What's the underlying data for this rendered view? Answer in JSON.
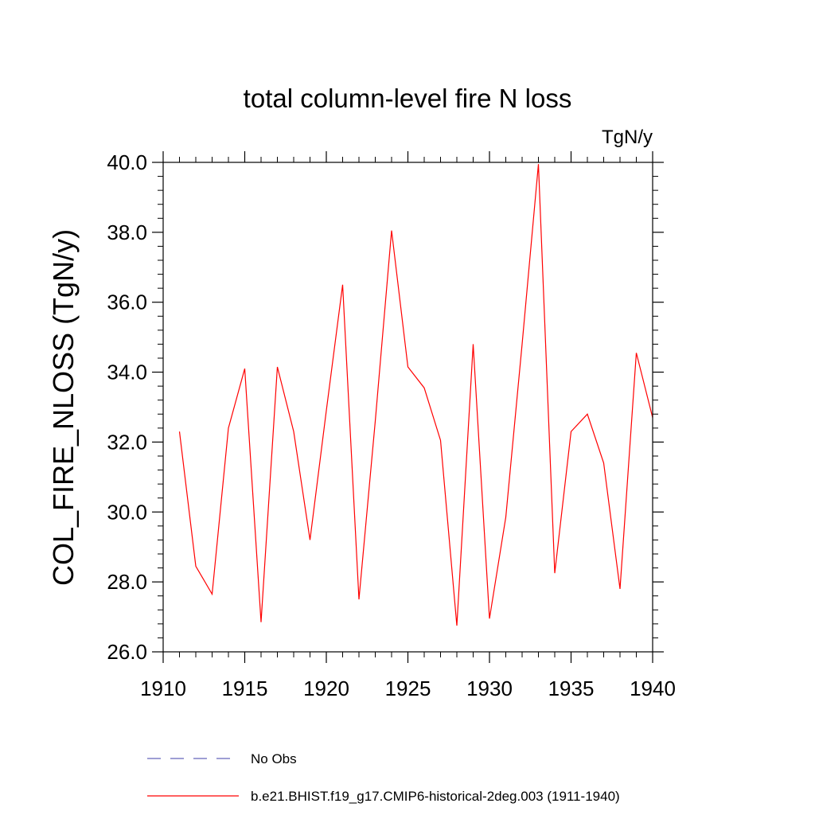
{
  "chart_data": {
    "type": "line",
    "title": "total column-level fire N loss",
    "units_label": "TgN/y",
    "xlabel": "",
    "ylabel": "COL_FIRE_NLOSS  (TgN/y)",
    "xlim": [
      1910,
      1940
    ],
    "ylim": [
      26.0,
      40.0
    ],
    "x_ticks": [
      1910,
      1915,
      1920,
      1925,
      1930,
      1935,
      1940
    ],
    "x_tick_labels": [
      "1910",
      "1915",
      "1920",
      "1925",
      "1930",
      "1935",
      "1940"
    ],
    "y_ticks": [
      26.0,
      28.0,
      30.0,
      32.0,
      34.0,
      36.0,
      38.0,
      40.0
    ],
    "y_tick_labels": [
      "26.0",
      "28.0",
      "30.0",
      "32.0",
      "34.0",
      "36.0",
      "38.0",
      "40.0"
    ],
    "grid": false,
    "legend_position": "bottom",
    "series": [
      {
        "name": "b.e21.BHIST.f19_g17.CMIP6-historical-2deg.003 (1911-1940)",
        "color": "#ff0000",
        "style": "solid",
        "x": [
          1911,
          1912,
          1913,
          1914,
          1915,
          1916,
          1917,
          1918,
          1919,
          1920,
          1921,
          1922,
          1923,
          1924,
          1925,
          1926,
          1927,
          1928,
          1929,
          1930,
          1931,
          1932,
          1933,
          1934,
          1935,
          1936,
          1937,
          1938,
          1939,
          1940
        ],
        "values": [
          32.3,
          28.45,
          27.65,
          32.4,
          34.1,
          26.85,
          34.15,
          32.3,
          29.2,
          32.9,
          36.5,
          27.5,
          32.6,
          38.05,
          34.15,
          33.55,
          32.05,
          26.75,
          34.8,
          26.95,
          29.85,
          34.8,
          39.95,
          28.25,
          32.3,
          32.8,
          31.4,
          27.8,
          34.55,
          32.7
        ]
      }
    ],
    "legend": [
      {
        "label": "No Obs",
        "color": "#6666bb",
        "style": "dashed"
      },
      {
        "label": "b.e21.BHIST.f19_g17.CMIP6-historical-2deg.003 (1911-1940)",
        "color": "#ff0000",
        "style": "solid"
      }
    ]
  }
}
